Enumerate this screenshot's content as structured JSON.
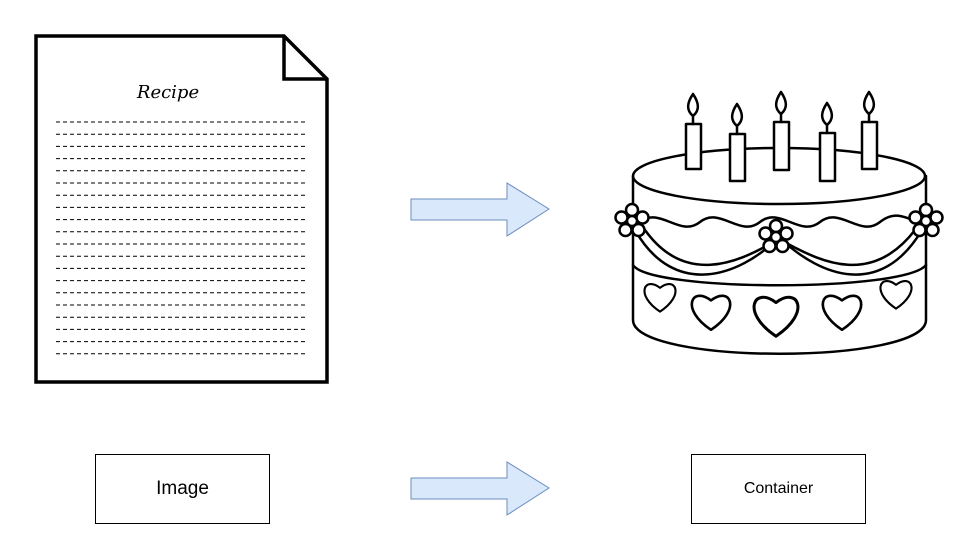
{
  "document": {
    "title": "Recipe"
  },
  "boxes": {
    "image_label": "Image",
    "container_label": "Container"
  },
  "colors": {
    "arrow_fill": "#dae8fc",
    "arrow_stroke": "#6c8ebf",
    "line": "#000000",
    "background": "#ffffff"
  },
  "icons": {
    "document": "recipe-document-icon",
    "cake": "birthday-cake-icon",
    "arrow": "right-arrow-icon"
  }
}
